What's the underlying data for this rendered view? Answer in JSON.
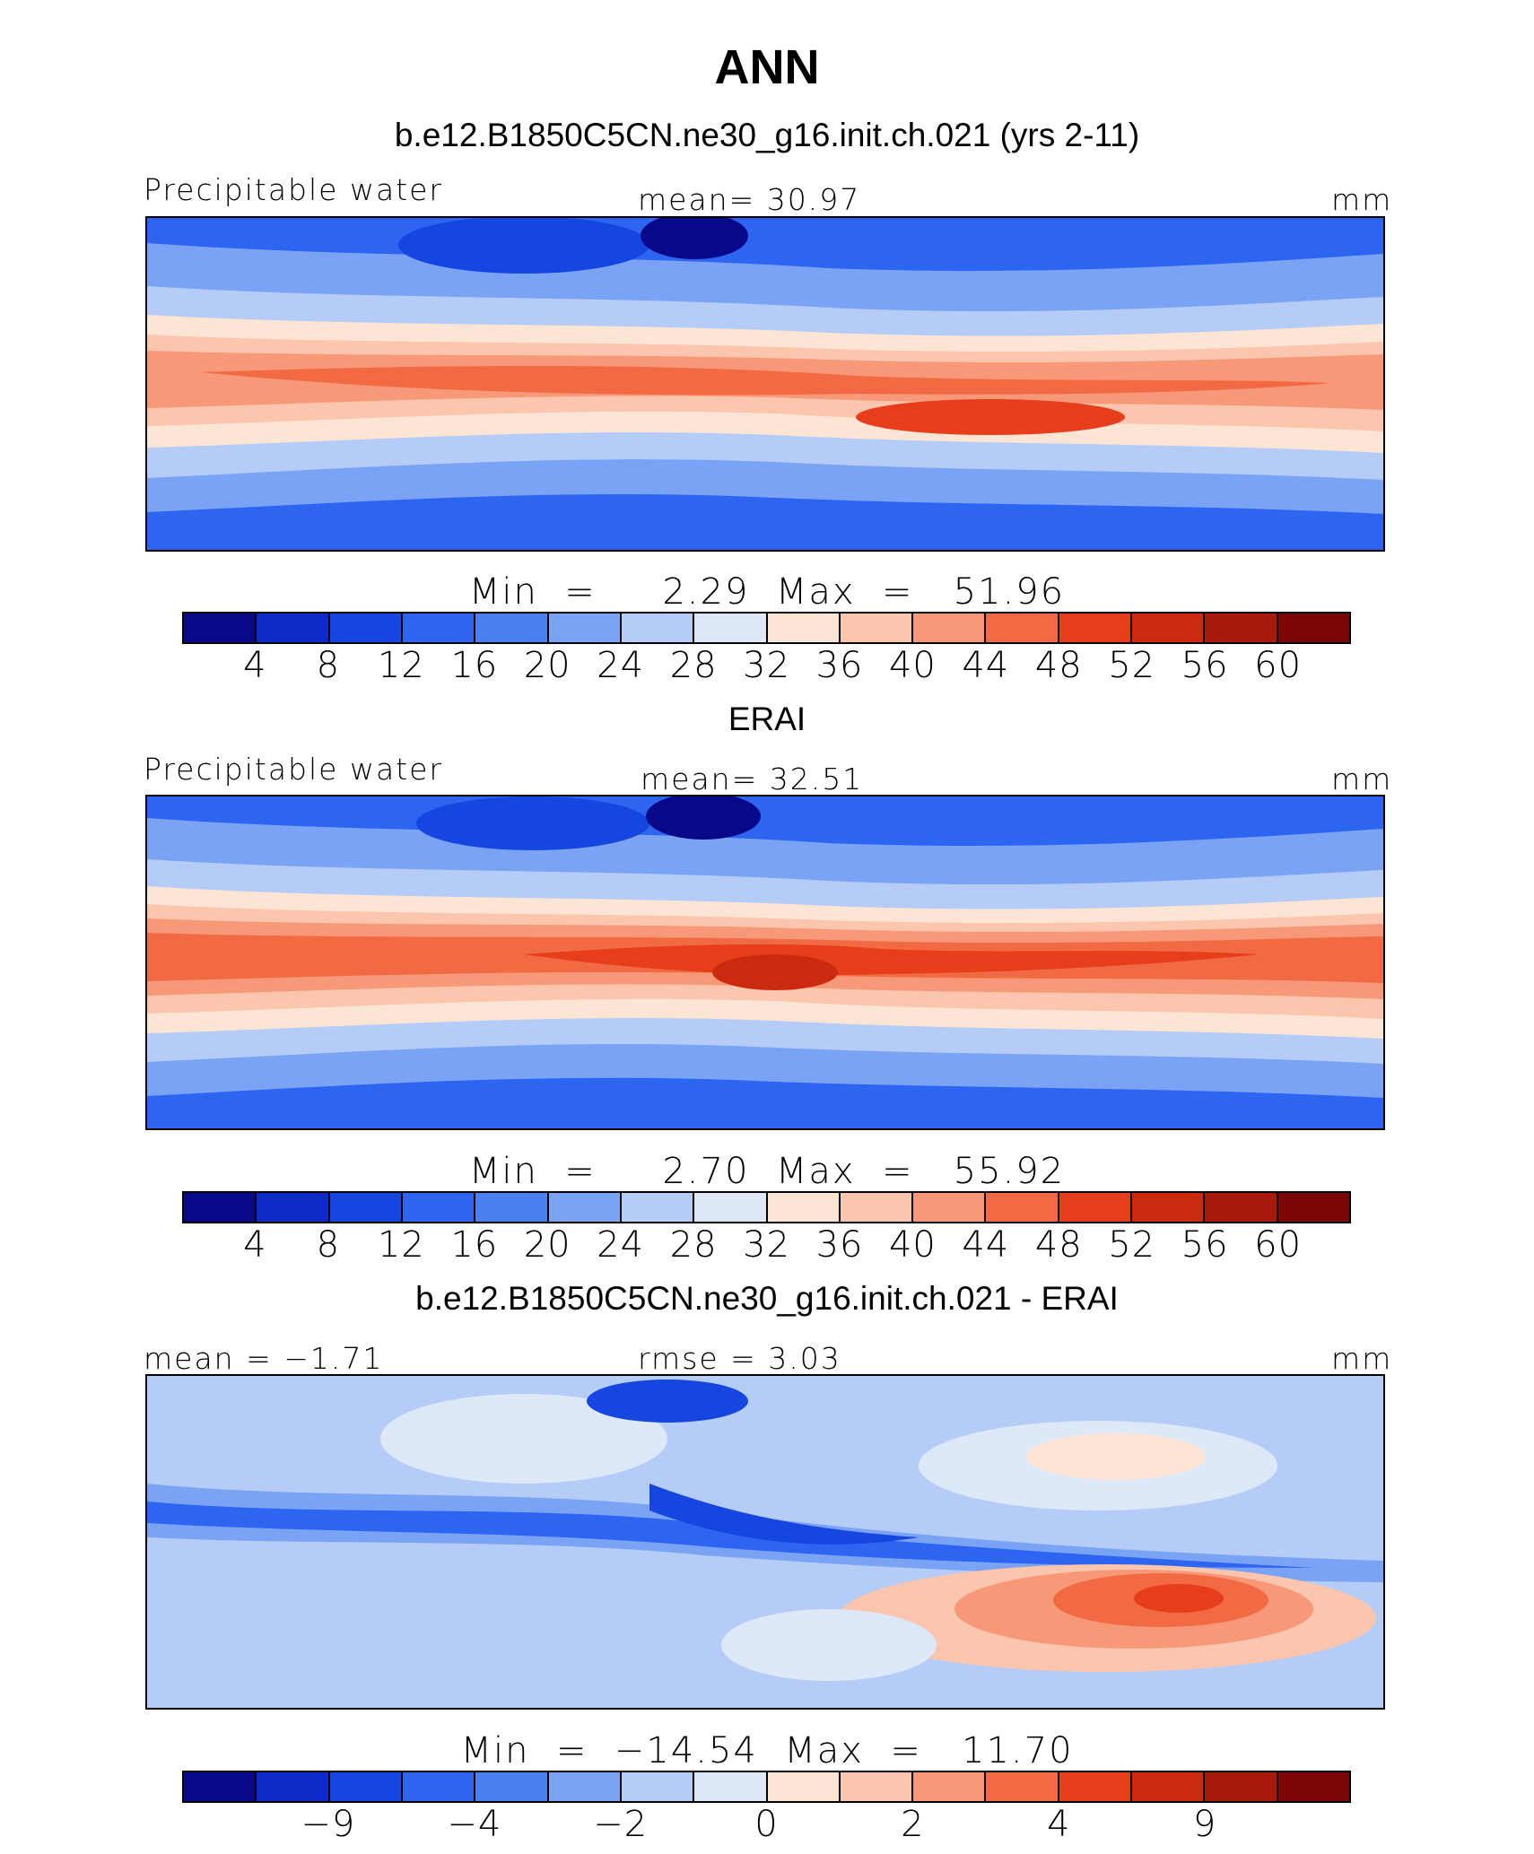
{
  "figure": {
    "title": "ANN",
    "panels": [
      {
        "subtitle": "b.e12.B1850C5CN.ne30_g16.init.ch.021 (yrs 2-11)",
        "left_label": "Precipitable  water",
        "center_label": "mean=   30.97",
        "right_label": "mm",
        "min_max": "Min  =     2.29  Max  =   51.96",
        "colorbar_labels": [
          "4",
          "8",
          "12",
          "16",
          "20",
          "24",
          "28",
          "32",
          "36",
          "40",
          "44",
          "48",
          "52",
          "56",
          "60"
        ]
      },
      {
        "subtitle": "ERAI",
        "left_label": "Precipitable  water",
        "center_label": "mean=   32.51",
        "right_label": "mm",
        "min_max": "Min  =     2.70  Max  =   55.92",
        "colorbar_labels": [
          "4",
          "8",
          "12",
          "16",
          "20",
          "24",
          "28",
          "32",
          "36",
          "40",
          "44",
          "48",
          "52",
          "56",
          "60"
        ]
      },
      {
        "subtitle": "b.e12.B1850C5CN.ne30_g16.init.ch.021 - ERAI",
        "left_label": "mean  =   −1.71",
        "center_label": "rmse  =     3.03",
        "right_label": "mm",
        "min_max": "Min  =  −14.54  Max  =   11.70",
        "colorbar_labels": [
          "−9",
          "−4",
          "−2",
          "0",
          "2",
          "4",
          "9"
        ]
      }
    ],
    "colorbar_colors": [
      "#08088a",
      "#0b2bc4",
      "#1546e0",
      "#2d64f0",
      "#4a7ff2",
      "#7aa3f5",
      "#b5ccf7",
      "#dde8f8",
      "#fde5d6",
      "#fbc5ae",
      "#f79878",
      "#f26a43",
      "#e63d1a",
      "#cc2a0e",
      "#a61b0b",
      "#7a0606"
    ]
  }
}
